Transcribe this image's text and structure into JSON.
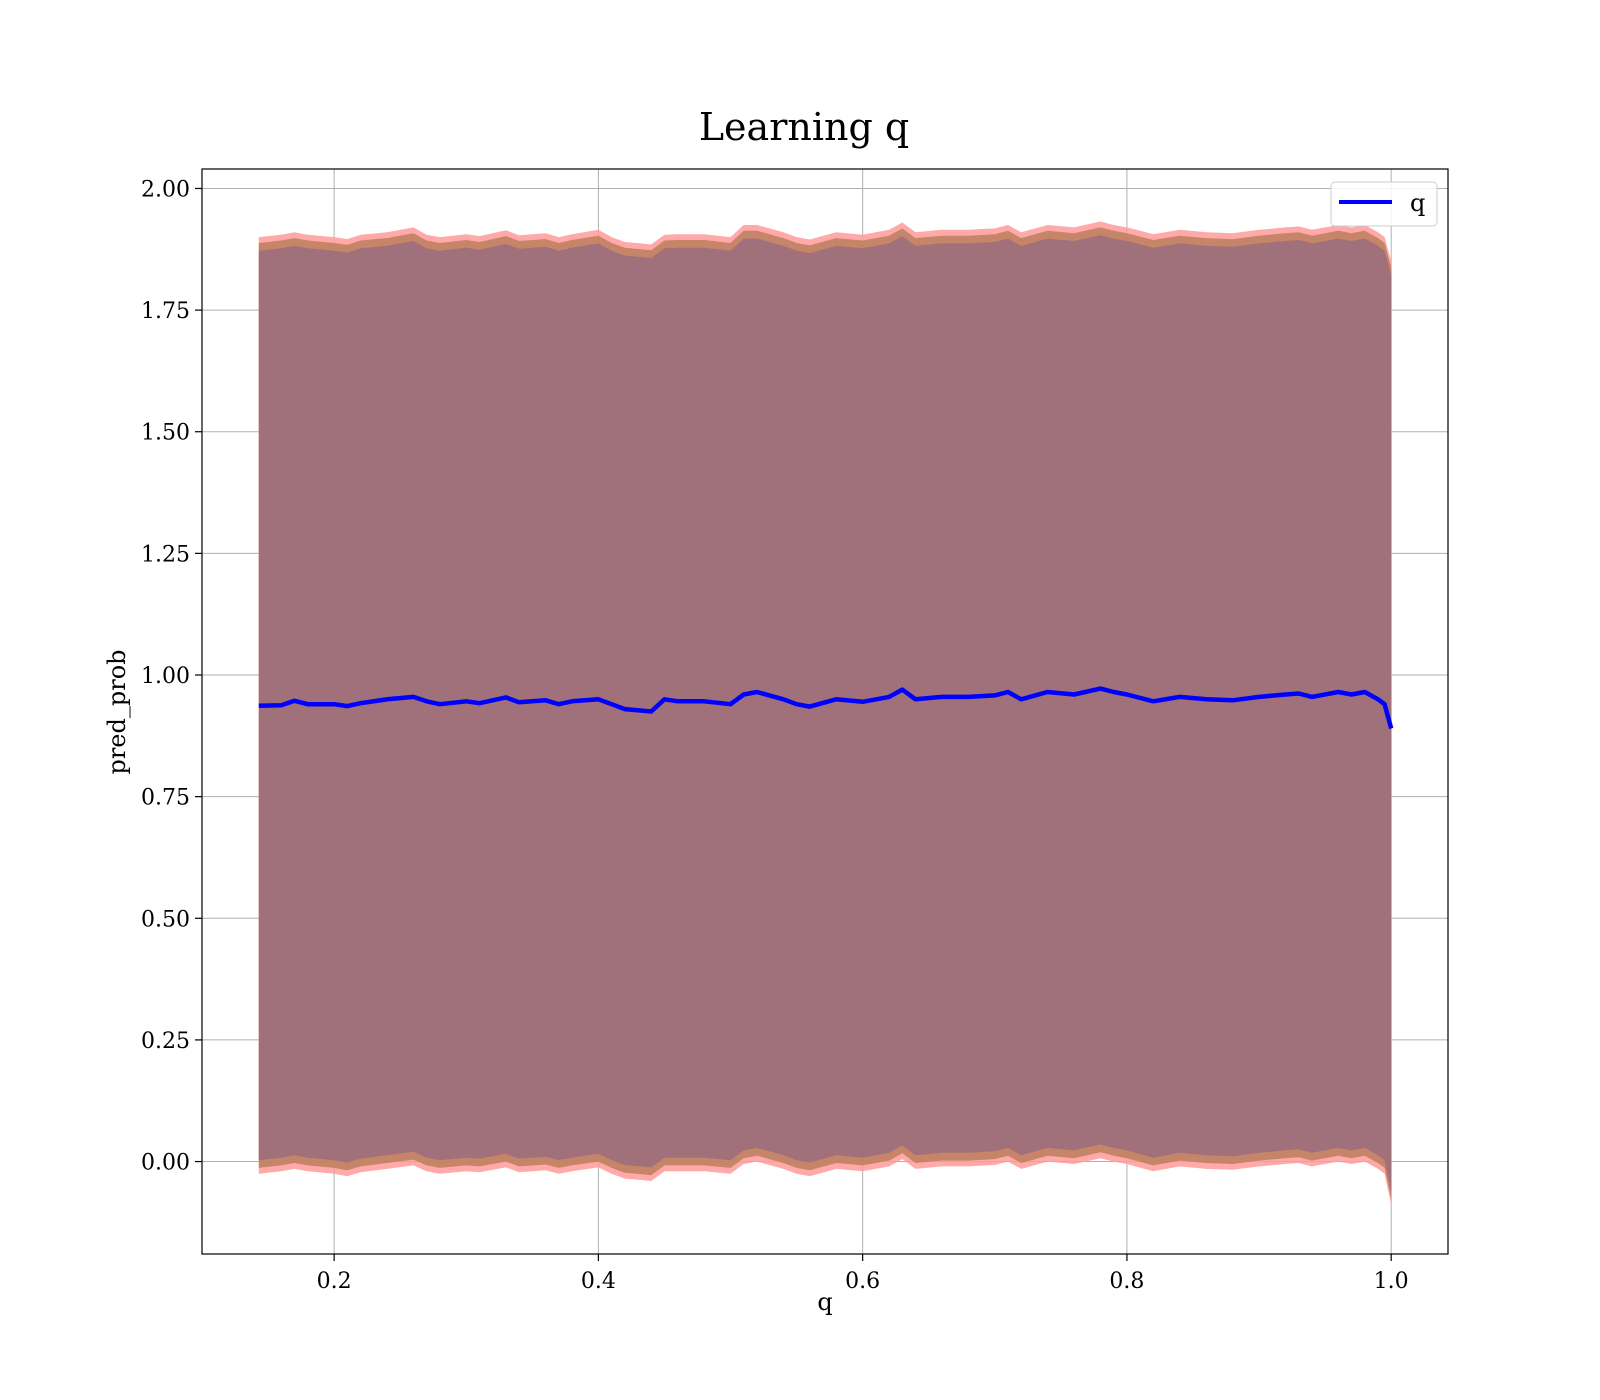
{
  "chart_data": {
    "type": "line",
    "title": "Learning q",
    "xlabel": "q",
    "ylabel": "pred_prob",
    "xlim": [
      0.1,
      1.043
    ],
    "ylim": [
      -0.19,
      2.04
    ],
    "x_ticks": [
      "0.2",
      "0.4",
      "0.6",
      "0.8",
      "1.0"
    ],
    "x_tick_values": [
      0.2,
      0.4,
      0.6,
      0.8,
      1.0
    ],
    "y_ticks": [
      "0.00",
      "0.25",
      "0.50",
      "0.75",
      "1.00",
      "1.25",
      "1.50",
      "1.75",
      "2.00"
    ],
    "y_tick_values": [
      0.0,
      0.25,
      0.5,
      0.75,
      1.0,
      1.25,
      1.5,
      1.75,
      2.0
    ],
    "grid": true,
    "legend": {
      "position": "top-right",
      "entries": [
        "q"
      ]
    },
    "colors": {
      "line": "#0000ff",
      "band_outer": "#ff9a9a",
      "band_mid": "#c08060",
      "band_inner": "#a0717a"
    },
    "series": [
      {
        "name": "q",
        "x": [
          0.143,
          0.16,
          0.17,
          0.18,
          0.2,
          0.21,
          0.22,
          0.24,
          0.26,
          0.27,
          0.28,
          0.3,
          0.31,
          0.33,
          0.34,
          0.36,
          0.37,
          0.38,
          0.4,
          0.41,
          0.42,
          0.44,
          0.45,
          0.46,
          0.48,
          0.5,
          0.51,
          0.52,
          0.54,
          0.55,
          0.56,
          0.58,
          0.6,
          0.62,
          0.63,
          0.64,
          0.66,
          0.68,
          0.7,
          0.71,
          0.72,
          0.74,
          0.76,
          0.78,
          0.79,
          0.8,
          0.82,
          0.84,
          0.86,
          0.88,
          0.9,
          0.92,
          0.93,
          0.94,
          0.96,
          0.97,
          0.98,
          0.99,
          0.995,
          1.0
        ],
        "y": [
          0.937,
          0.938,
          0.947,
          0.94,
          0.94,
          0.936,
          0.942,
          0.95,
          0.955,
          0.946,
          0.94,
          0.946,
          0.942,
          0.954,
          0.944,
          0.948,
          0.94,
          0.946,
          0.95,
          0.94,
          0.93,
          0.925,
          0.95,
          0.946,
          0.946,
          0.94,
          0.96,
          0.965,
          0.95,
          0.94,
          0.935,
          0.95,
          0.945,
          0.955,
          0.97,
          0.95,
          0.955,
          0.955,
          0.958,
          0.965,
          0.95,
          0.965,
          0.96,
          0.972,
          0.965,
          0.96,
          0.946,
          0.955,
          0.95,
          0.948,
          0.955,
          0.96,
          0.962,
          0.955,
          0.965,
          0.96,
          0.965,
          0.95,
          0.94,
          0.89
        ],
        "band_upper": [
          1.9,
          1.905,
          1.91,
          1.905,
          1.9,
          1.896,
          1.905,
          1.91,
          1.92,
          1.905,
          1.9,
          1.906,
          1.902,
          1.914,
          1.904,
          1.908,
          1.9,
          1.906,
          1.915,
          1.9,
          1.89,
          1.885,
          1.905,
          1.906,
          1.906,
          1.9,
          1.925,
          1.925,
          1.91,
          1.9,
          1.895,
          1.91,
          1.905,
          1.915,
          1.93,
          1.91,
          1.915,
          1.915,
          1.918,
          1.925,
          1.91,
          1.925,
          1.92,
          1.932,
          1.925,
          1.92,
          1.906,
          1.915,
          1.91,
          1.908,
          1.915,
          1.92,
          1.922,
          1.915,
          1.925,
          1.92,
          1.925,
          1.91,
          1.9,
          1.85
        ],
        "band_lower": [
          -0.025,
          -0.02,
          -0.015,
          -0.02,
          -0.025,
          -0.03,
          -0.022,
          -0.015,
          -0.008,
          -0.02,
          -0.025,
          -0.02,
          -0.022,
          -0.012,
          -0.022,
          -0.018,
          -0.025,
          -0.02,
          -0.012,
          -0.025,
          -0.035,
          -0.04,
          -0.02,
          -0.02,
          -0.02,
          -0.025,
          -0.005,
          0.0,
          -0.015,
          -0.025,
          -0.03,
          -0.015,
          -0.02,
          -0.01,
          0.005,
          -0.015,
          -0.01,
          -0.01,
          -0.007,
          0.0,
          -0.015,
          0.0,
          -0.005,
          0.007,
          0.0,
          -0.005,
          -0.02,
          -0.01,
          -0.015,
          -0.017,
          -0.01,
          -0.005,
          -0.003,
          -0.01,
          0.0,
          -0.005,
          0.0,
          -0.015,
          -0.025,
          -0.09
        ]
      }
    ]
  }
}
